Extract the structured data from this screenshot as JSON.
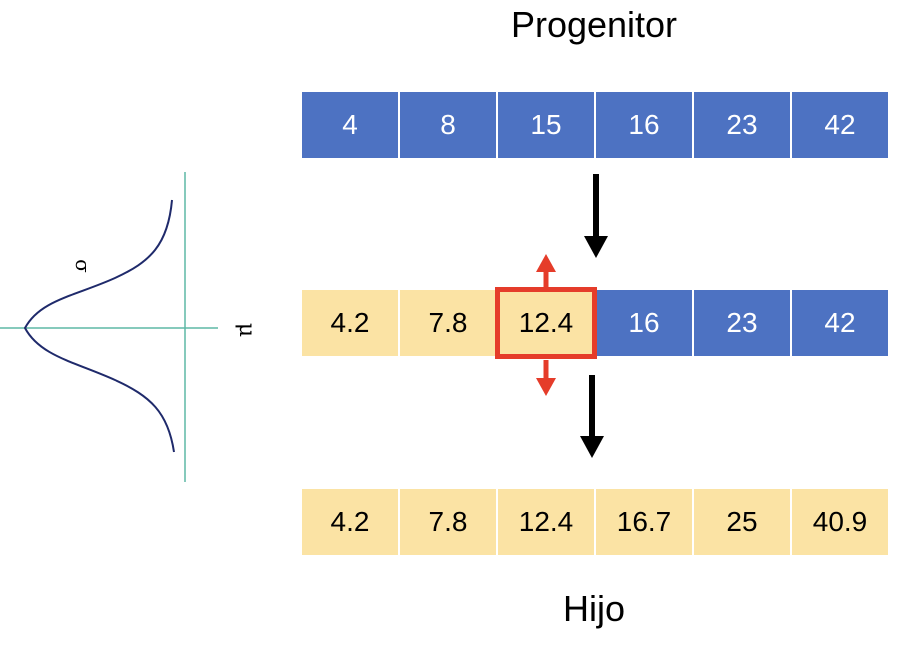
{
  "titles": {
    "top": "Progenitor",
    "bottom": "Hijo"
  },
  "distribution": {
    "sigma_label": "σ",
    "mu_label": "μ"
  },
  "rows": {
    "parent": [
      {
        "value": "4",
        "color": "blue"
      },
      {
        "value": "8",
        "color": "blue"
      },
      {
        "value": "15",
        "color": "blue"
      },
      {
        "value": "16",
        "color": "blue"
      },
      {
        "value": "23",
        "color": "blue"
      },
      {
        "value": "42",
        "color": "blue"
      }
    ],
    "mutating": [
      {
        "value": "4.2",
        "color": "yellow"
      },
      {
        "value": "7.8",
        "color": "yellow"
      },
      {
        "value": "12.4",
        "color": "yellow",
        "highlight": true
      },
      {
        "value": "16",
        "color": "blue"
      },
      {
        "value": "23",
        "color": "blue"
      },
      {
        "value": "42",
        "color": "blue"
      }
    ],
    "child": [
      {
        "value": "4.2",
        "color": "yellow"
      },
      {
        "value": "7.8",
        "color": "yellow"
      },
      {
        "value": "12.4",
        "color": "yellow"
      },
      {
        "value": "16.7",
        "color": "yellow"
      },
      {
        "value": "25",
        "color": "yellow"
      },
      {
        "value": "40.9",
        "color": "yellow"
      }
    ]
  },
  "colors": {
    "blue": "#4d72c2",
    "yellow": "#fbe3a4",
    "highlight": "#e53c2a",
    "axis": "#5fb8a6",
    "curve": "#1f2a6b",
    "arrow": "#000000"
  }
}
